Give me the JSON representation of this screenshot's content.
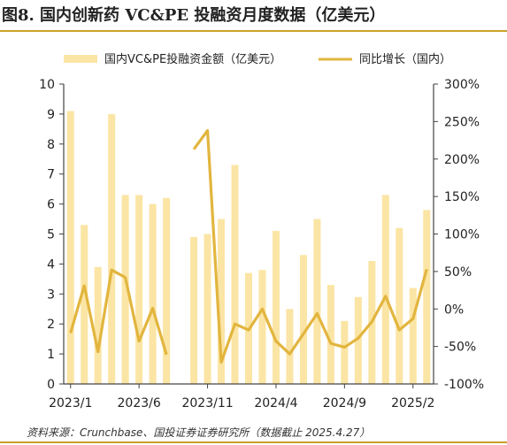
{
  "title": "图8. 国内创新药 VC&PE 投融资月度数据（亿美元）",
  "source": "资料来源：Crunchbase、国投证券证券研究所（数据截止 2025.4.27）",
  "colors": {
    "bar": "#fbe5a5",
    "line": "#e2b53e",
    "accent": "#c9a227"
  },
  "chart_data": {
    "type": "bar+line",
    "legend_position": "top",
    "categories": [
      "2023/1",
      "2023/2",
      "2023/3",
      "2023/4",
      "2023/5",
      "2023/6",
      "2023/7",
      "2023/8",
      "2023/9",
      "2023/10",
      "2023/11",
      "2023/12",
      "2024/1",
      "2024/2",
      "2024/3",
      "2024/4",
      "2024/5",
      "2024/6",
      "2024/7",
      "2024/8",
      "2024/9",
      "2024/10",
      "2024/11",
      "2024/12",
      "2025/1",
      "2025/2",
      "2025/3"
    ],
    "x_tick_labels": [
      {
        "index": 0,
        "label": "2023/1"
      },
      {
        "index": 5,
        "label": "2023/6"
      },
      {
        "index": 10,
        "label": "2023/11"
      },
      {
        "index": 15,
        "label": "2024/4"
      },
      {
        "index": 20,
        "label": "2024/9"
      },
      {
        "index": 25,
        "label": "2025/2"
      }
    ],
    "series": [
      {
        "name": "国内VC&PE投融资金额（亿美元）",
        "type": "bar",
        "axis": "left",
        "values": [
          9.1,
          5.3,
          3.9,
          9.0,
          6.3,
          6.3,
          6.0,
          6.2,
          0.0,
          4.9,
          5.0,
          5.5,
          7.3,
          3.7,
          3.8,
          5.1,
          2.5,
          4.3,
          5.5,
          3.3,
          2.1,
          2.9,
          4.1,
          6.3,
          5.2,
          3.2,
          5.8
        ]
      },
      {
        "name": "同比增长（国内）",
        "type": "line",
        "axis": "right",
        "values": [
          -32,
          31,
          -57,
          52,
          42,
          -43,
          1,
          -61,
          null,
          213,
          238,
          -71,
          -20,
          -28,
          0,
          -43,
          -60,
          -33,
          -6,
          -46,
          -51,
          -39,
          -17,
          17,
          -28,
          -13,
          53
        ]
      }
    ],
    "left_axis": {
      "min": 0,
      "max": 10,
      "ticks": [
        "0",
        "1",
        "2",
        "3",
        "4",
        "5",
        "6",
        "7",
        "8",
        "9",
        "10"
      ]
    },
    "right_axis": {
      "min": -100,
      "max": 300,
      "ticks": [
        "-100%",
        "-50%",
        "0%",
        "50%",
        "100%",
        "150%",
        "200%",
        "250%",
        "300%"
      ]
    }
  }
}
